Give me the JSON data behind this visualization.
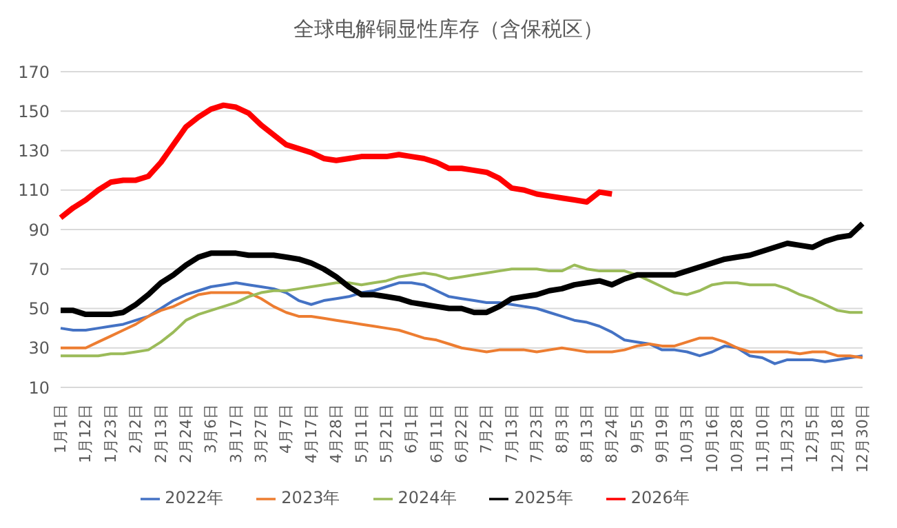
{
  "chart_data": {
    "type": "line",
    "title": "全球电解铜显性库存（含保税区）",
    "categories": [
      "1月1日",
      null,
      "1月12日",
      null,
      "1月23日",
      null,
      "2月2日",
      null,
      "2月13日",
      null,
      "2月24日",
      null,
      "3月6日",
      null,
      "3月17日",
      null,
      "3月27日",
      null,
      "4月7日",
      null,
      "4月17日",
      null,
      "4月28日",
      null,
      "5月11日",
      null,
      "5月21日",
      null,
      "6月1日",
      null,
      "6月11日",
      null,
      "6月22日",
      null,
      "7月2日",
      null,
      "7月13日",
      null,
      "7月23日",
      null,
      "8月3日",
      null,
      "8月13日",
      null,
      "8月24日",
      null,
      "9月5日",
      null,
      "9月19日",
      null,
      "10月3日",
      null,
      "10月16日",
      null,
      "10月28日",
      null,
      "11月10日",
      null,
      "11月23日",
      null,
      "12月5日",
      null,
      "12月18日",
      null,
      "12月30日"
    ],
    "series": [
      {
        "name": "2022年",
        "color": "#4472c4",
        "values": [
          40,
          39,
          39,
          40,
          41,
          42,
          44,
          46,
          50,
          54,
          57,
          59,
          61,
          62,
          63,
          62,
          61,
          60,
          58,
          54,
          52,
          54,
          55,
          56,
          58,
          59,
          61,
          63,
          63,
          62,
          59,
          56,
          55,
          54,
          53,
          53,
          52,
          51,
          50,
          48,
          46,
          44,
          43,
          41,
          38,
          34,
          33,
          32,
          29,
          29,
          28,
          26,
          28,
          31,
          30,
          26,
          25,
          22,
          24,
          24,
          24,
          23,
          24,
          25,
          26
        ]
      },
      {
        "name": "2023年",
        "color": "#ed7d31",
        "values": [
          30,
          30,
          30,
          33,
          36,
          39,
          42,
          46,
          49,
          51,
          54,
          57,
          58,
          58,
          58,
          58,
          55,
          51,
          48,
          46,
          46,
          45,
          44,
          43,
          42,
          41,
          40,
          39,
          37,
          35,
          34,
          32,
          30,
          29,
          28,
          29,
          29,
          29,
          28,
          29,
          30,
          29,
          28,
          28,
          28,
          29,
          31,
          32,
          31,
          31,
          33,
          35,
          35,
          33,
          30,
          28,
          28,
          28,
          28,
          27,
          28,
          28,
          26,
          26,
          25
        ]
      },
      {
        "name": "2024年",
        "color": "#9bbb59",
        "values": [
          26,
          26,
          26,
          26,
          27,
          27,
          28,
          29,
          33,
          38,
          44,
          47,
          49,
          51,
          53,
          56,
          58,
          59,
          59,
          60,
          61,
          62,
          63,
          63,
          62,
          63,
          64,
          66,
          67,
          68,
          67,
          65,
          66,
          67,
          68,
          69,
          70,
          70,
          70,
          69,
          69,
          72,
          70,
          69,
          69,
          69,
          67,
          64,
          61,
          58,
          57,
          59,
          62,
          63,
          63,
          62,
          62,
          62,
          60,
          57,
          55,
          52,
          49,
          48,
          48
        ]
      },
      {
        "name": "2025年",
        "color": "#000000",
        "values": [
          49,
          49,
          47,
          47,
          47,
          48,
          52,
          57,
          63,
          67,
          72,
          76,
          78,
          78,
          78,
          77,
          77,
          77,
          76,
          75,
          73,
          70,
          66,
          61,
          57,
          57,
          56,
          55,
          53,
          52,
          51,
          50,
          50,
          48,
          48,
          51,
          55,
          56,
          57,
          59,
          60,
          62,
          63,
          64,
          62,
          65,
          67,
          67,
          67,
          67,
          69,
          71,
          73,
          75,
          76,
          77,
          79,
          81,
          83,
          82,
          81,
          84,
          86,
          87,
          93
        ]
      },
      {
        "name": "2026年",
        "color": "#ff0000",
        "values": [
          96,
          101,
          105,
          110,
          114,
          115,
          115,
          117,
          124,
          133,
          142,
          147,
          151,
          153,
          152,
          149,
          143,
          138,
          133,
          131,
          129,
          126,
          125,
          126,
          127,
          127,
          127,
          128,
          127,
          126,
          124,
          121,
          121,
          120,
          119,
          116,
          111,
          110,
          108,
          107,
          106,
          105,
          104,
          109,
          108,
          null,
          null,
          null,
          null,
          null,
          null,
          null,
          null,
          null,
          null,
          null,
          null,
          null,
          null,
          null,
          null,
          null,
          null,
          null,
          null
        ]
      }
    ],
    "ylim": [
      10,
      170
    ],
    "yticks": [
      10,
      30,
      50,
      70,
      90,
      110,
      130,
      150,
      170
    ],
    "grid": "y",
    "legend": "bottom",
    "marker": "none",
    "line_style": "solid"
  }
}
